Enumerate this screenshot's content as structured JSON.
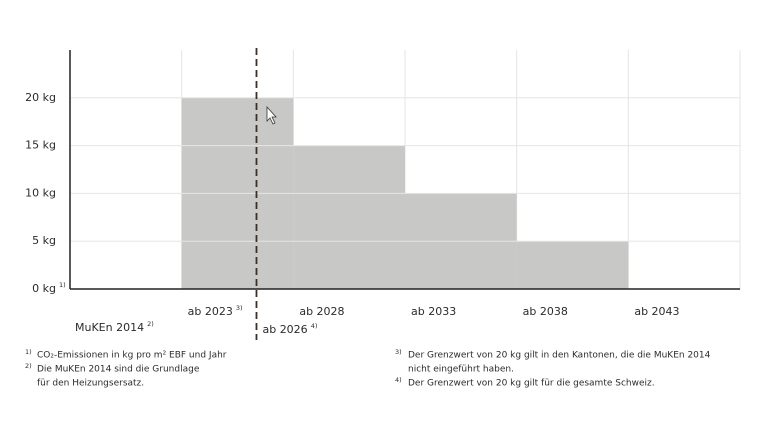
{
  "chart_data": {
    "type": "bar",
    "categories": [
      "ab 2023",
      "ab 2028",
      "ab 2033",
      "ab 2038",
      "ab 2043"
    ],
    "category_notes": [
      "3)",
      null,
      null,
      null,
      null
    ],
    "values": [
      20,
      15,
      10,
      5,
      0
    ],
    "color": "#c8c8c6",
    "ylim": [
      0,
      25
    ],
    "yticks": [
      {
        "value": 0,
        "label": "0 kg"
      },
      {
        "value": 5,
        "label": "5 kg"
      },
      {
        "value": 10,
        "label": "10 kg"
      },
      {
        "value": 15,
        "label": "15 kg"
      },
      {
        "value": 20,
        "label": "20 kg"
      }
    ],
    "ytick_note": "1)",
    "grid": true,
    "baseline_label": {
      "text": "MuKEn 2014",
      "note": "2)"
    },
    "marker_label": {
      "text": "ab 2026",
      "note": "4)"
    },
    "footnotes": [
      {
        "marker": "1)",
        "lines": [
          "CO₂-Emissionen in kg pro m² EBF und Jahr"
        ]
      },
      {
        "marker": "2)",
        "lines": [
          "Die MuKEn 2014 sind die Grundlage",
          "für den Heizungsersatz."
        ]
      },
      {
        "marker": "3)",
        "lines": [
          "Der Grenzwert von 20 kg gilt in den Kantonen, die die MuKEn 2014",
          "nicht eingeführt haben."
        ]
      },
      {
        "marker": "4)",
        "lines": [
          "Der Grenzwert von 20 kg gilt für die gesamte Schweiz."
        ]
      }
    ]
  }
}
